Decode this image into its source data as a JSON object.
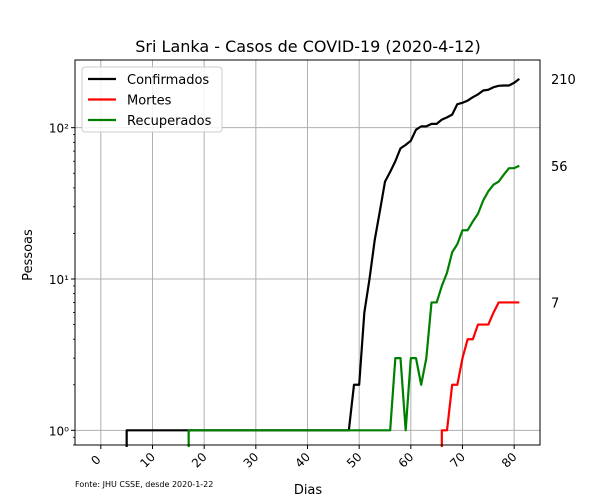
{
  "chart_data": {
    "type": "line",
    "title": "Sri Lanka - Casos de COVID-19 (2020-4-12)",
    "xlabel": "Dias",
    "ylabel": "Pessoas",
    "yscale": "log",
    "xlim": [
      -5,
      85
    ],
    "ylim": [
      0.8,
      280
    ],
    "x_ticks": [
      0,
      10,
      20,
      30,
      40,
      50,
      60,
      70,
      80
    ],
    "y_ticks": [
      {
        "value": 1,
        "label": "10⁰"
      },
      {
        "value": 10,
        "label": "10¹"
      },
      {
        "value": 100,
        "label": "10²"
      }
    ],
    "grid": true,
    "legend_position": "top-left",
    "source_note": "Fonte: JHU CSSE, desde 2020-1-22",
    "series": [
      {
        "name": "Confirmados",
        "color": "#000000",
        "end_label": "210",
        "x": [
          5,
          6,
          7,
          8,
          9,
          10,
          11,
          12,
          13,
          14,
          15,
          16,
          17,
          18,
          19,
          20,
          21,
          22,
          23,
          24,
          25,
          26,
          27,
          28,
          29,
          30,
          31,
          32,
          33,
          34,
          35,
          36,
          37,
          38,
          39,
          40,
          41,
          42,
          43,
          44,
          45,
          46,
          47,
          48,
          49,
          50,
          51,
          52,
          53,
          54,
          55,
          56,
          57,
          58,
          59,
          60,
          61,
          62,
          63,
          64,
          65,
          66,
          67,
          68,
          69,
          70,
          71,
          72,
          73,
          74,
          75,
          76,
          77,
          78,
          79,
          80,
          81
        ],
        "y": [
          1,
          1,
          1,
          1,
          1,
          1,
          1,
          1,
          1,
          1,
          1,
          1,
          1,
          1,
          1,
          1,
          1,
          1,
          1,
          1,
          1,
          1,
          1,
          1,
          1,
          1,
          1,
          1,
          1,
          1,
          1,
          1,
          1,
          1,
          1,
          1,
          1,
          1,
          1,
          1,
          1,
          1,
          1,
          1,
          2,
          2,
          6,
          10,
          18,
          28,
          44,
          51,
          60,
          73,
          77,
          82,
          97,
          102,
          102,
          106,
          106,
          113,
          117,
          122,
          143,
          146,
          151,
          159,
          166,
          176,
          178,
          185,
          189,
          190,
          190,
          198,
          210
        ]
      },
      {
        "name": "Mortes",
        "color": "#ff0000",
        "end_label": "7",
        "x": [
          66,
          67,
          68,
          69,
          70,
          71,
          72,
          73,
          74,
          75,
          76,
          77,
          78,
          79,
          80,
          81
        ],
        "y": [
          1,
          1,
          2,
          2,
          3,
          4,
          4,
          5,
          5,
          5,
          6,
          7,
          7,
          7,
          7,
          7
        ]
      },
      {
        "name": "Recuperados",
        "color": "#008000",
        "end_label": "56",
        "x": [
          17,
          18,
          19,
          20,
          21,
          22,
          23,
          24,
          25,
          26,
          27,
          28,
          29,
          30,
          31,
          32,
          33,
          34,
          35,
          36,
          37,
          38,
          39,
          40,
          41,
          42,
          43,
          44,
          45,
          46,
          47,
          48,
          49,
          50,
          51,
          52,
          53,
          54,
          55,
          56,
          57,
          58,
          59,
          60,
          61,
          62,
          63,
          64,
          65,
          66,
          67,
          68,
          69,
          70,
          71,
          72,
          73,
          74,
          75,
          76,
          77,
          78,
          79,
          80,
          81
        ],
        "y": [
          1,
          1,
          1,
          1,
          1,
          1,
          1,
          1,
          1,
          1,
          1,
          1,
          1,
          1,
          1,
          1,
          1,
          1,
          1,
          1,
          1,
          1,
          1,
          1,
          1,
          1,
          1,
          1,
          1,
          1,
          1,
          1,
          1,
          1,
          1,
          1,
          1,
          1,
          1,
          1,
          3,
          3,
          1,
          3,
          3,
          2,
          3,
          7,
          7,
          9,
          11,
          15,
          17,
          21,
          21,
          24,
          27,
          33,
          38,
          42,
          44,
          49,
          54,
          54,
          56
        ]
      }
    ]
  }
}
